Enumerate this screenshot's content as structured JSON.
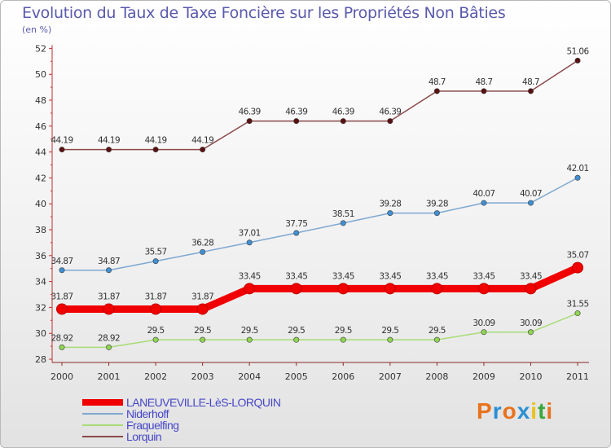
{
  "title": "Evolution du Taux de Taxe Foncière sur les Propriétés Non Bâties",
  "subtitle": "(en %)",
  "logo": {
    "text": "Proxiti",
    "letter_colors": [
      "#e8731d",
      "#2a8fd4",
      "#e8731d",
      "#2a8fd4",
      "#e8c21d",
      "#3aa83a",
      "#e8731d"
    ]
  },
  "chart_data": {
    "type": "line",
    "title": "Evolution du Taux de Taxe Foncière sur les Propriétés Non Bâties",
    "ylabel": "(en %)",
    "xlabel": "",
    "x": [
      "2000",
      "2001",
      "2002",
      "2003",
      "2004",
      "2005",
      "2006",
      "2007",
      "2008",
      "2009",
      "2010",
      "2011"
    ],
    "ylim": [
      28,
      52
    ],
    "yticks": [
      28,
      30,
      32,
      34,
      36,
      38,
      40,
      42,
      44,
      46,
      48,
      50,
      52
    ],
    "grid": false,
    "legend_position": "bottom-left",
    "series": [
      {
        "name": "LANEUVEVILLE-LèS-LORQUIN",
        "color": "#f00000",
        "values": [
          31.87,
          31.87,
          31.87,
          31.87,
          33.45,
          33.45,
          33.45,
          33.45,
          33.45,
          33.45,
          33.45,
          35.07
        ],
        "labels": [
          "31.87",
          "31.87",
          "31.87",
          "31.87",
          "33.45",
          "33.45",
          "33.45",
          "33.45",
          "33.45",
          "33.45",
          "33.45",
          "35.07"
        ]
      },
      {
        "name": "Niderhoff",
        "color": "#7ea8d0",
        "point_color": "#3f8fd2",
        "values": [
          34.87,
          34.87,
          35.57,
          36.28,
          37.01,
          37.75,
          38.51,
          39.28,
          39.28,
          40.07,
          40.07,
          42.01
        ],
        "labels": [
          "34.87",
          "34.87",
          "35.57",
          "36.28",
          "37.01",
          "37.75",
          "38.51",
          "39.28",
          "39.28",
          "40.07",
          "40.07",
          "42.01"
        ]
      },
      {
        "name": "Fraquelfing",
        "color": "#a8dc78",
        "point_color": "#8fd452",
        "values": [
          28.92,
          28.92,
          29.5,
          29.5,
          29.5,
          29.5,
          29.5,
          29.5,
          29.5,
          30.09,
          30.09,
          31.55
        ],
        "labels": [
          "28.92",
          "28.92",
          "29.5",
          "29.5",
          "29.5",
          "29.5",
          "29.5",
          "29.5",
          "29.5",
          "30.09",
          "30.09",
          "31.55"
        ]
      },
      {
        "name": "Lorquin",
        "color": "#8b4a4a",
        "point_color": "#5a1010",
        "values": [
          44.19,
          44.19,
          44.19,
          44.19,
          46.39,
          46.39,
          46.39,
          46.39,
          48.7,
          48.7,
          48.7,
          51.06
        ],
        "labels": [
          "44.19",
          "44.19",
          "44.19",
          "44.19",
          "46.39",
          "46.39",
          "46.39",
          "46.39",
          "48.7",
          "48.7",
          "48.7",
          "51.06"
        ]
      }
    ]
  }
}
